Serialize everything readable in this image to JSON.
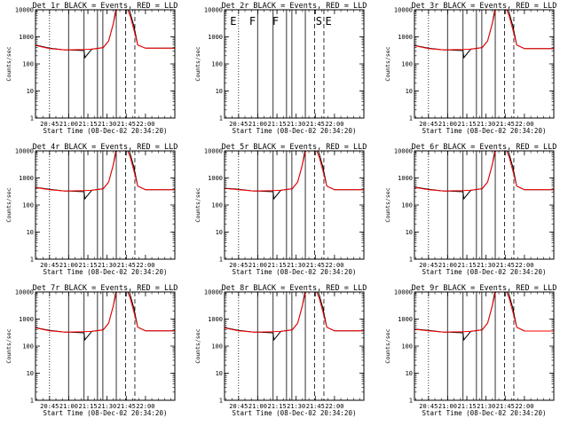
{
  "figure": {
    "time_range_hours": [
      20.567,
      22.383
    ],
    "x_tick_labels": [
      "20:45",
      "21:00",
      "21:15",
      "21:30",
      "21:45",
      "22:00"
    ],
    "x_tick_values_hours": [
      20.75,
      21.0,
      21.25,
      21.5,
      21.75,
      22.0
    ],
    "y_range": [
      1,
      10000
    ],
    "y_scale": "log",
    "y_tick_labels": [
      "1",
      "10",
      "100",
      "1000",
      "10000"
    ],
    "y_tick_values": [
      1,
      10,
      100,
      1000,
      10000
    ],
    "xlabel": "Start Time (08-Dec-02 20:34:20)",
    "ylabel": "Counts/sec",
    "colors": {
      "events": "#000000",
      "lld": "#ff0000"
    },
    "interval_markers_hours": [
      {
        "time": 20.75,
        "style": "dotted"
      },
      {
        "time": 20.998,
        "style": "solid"
      },
      {
        "time": 21.2,
        "style": "solid"
      },
      {
        "time": 21.375,
        "style": "solid"
      },
      {
        "time": 21.445,
        "style": "solid"
      },
      {
        "time": 21.62,
        "style": "solid"
      },
      {
        "time": 21.74,
        "style": "dashed"
      },
      {
        "time": 21.862,
        "style": "dashed"
      }
    ],
    "annotation_letters": [
      {
        "text": "E",
        "time": 20.64
      },
      {
        "text": "F",
        "time": 20.89
      },
      {
        "text": "F",
        "time": 21.19
      },
      {
        "text": "S",
        "time": 21.755
      },
      {
        "text": "E",
        "time": 21.88
      }
    ]
  },
  "chart_data": [
    {
      "type": "line",
      "title": "Det 1r BLACK = Events, RED = LLD",
      "has_data": true,
      "series": [
        {
          "name": "Events",
          "color": "#000000",
          "x": [
            20.567,
            20.75,
            20.95,
            21.0,
            21.01,
            21.2,
            21.21,
            21.3,
            21.45,
            21.52,
            21.58,
            21.62,
            21.64,
            21.7,
            21.75,
            21.8,
            21.85,
            21.9,
            22.0,
            22.2,
            22.383
          ],
          "y": [
            500,
            380,
            330,
            330,
            330,
            310,
            170,
            350,
            400,
            700,
            3000,
            12000,
            30000,
            30000,
            18000,
            8000,
            2500,
            500,
            380,
            380,
            380
          ]
        },
        {
          "name": "LLD",
          "color": "#ff0000",
          "x": [
            20.567,
            20.75,
            20.95,
            21.2,
            21.3,
            21.45,
            21.52,
            21.58,
            21.62,
            21.66,
            21.7,
            21.75,
            21.8,
            21.85,
            21.9,
            22.0,
            22.2,
            22.383
          ],
          "y": [
            480,
            370,
            330,
            340,
            350,
            400,
            700,
            3000,
            9000,
            14000,
            16000,
            13000,
            6000,
            1800,
            500,
            380,
            380,
            380
          ]
        }
      ]
    },
    {
      "type": "line",
      "title": "Det 2r BLACK = Events, RED = LLD",
      "has_data": false,
      "series": []
    },
    {
      "type": "line",
      "title": "Det 3r BLACK = Events, RED = LLD",
      "has_data": true,
      "series": [
        {
          "name": "Events",
          "color": "#000000",
          "x": [
            20.567,
            20.75,
            20.95,
            21.0,
            21.01,
            21.2,
            21.21,
            21.3,
            21.45,
            21.52,
            21.58,
            21.62,
            21.64,
            21.7,
            21.75,
            21.8,
            21.85,
            21.9,
            22.0,
            22.2,
            22.383
          ],
          "y": [
            480,
            380,
            330,
            330,
            330,
            310,
            170,
            350,
            400,
            700,
            3000,
            12000,
            30000,
            30000,
            18000,
            8000,
            2500,
            500,
            370,
            370,
            370
          ]
        },
        {
          "name": "LLD",
          "color": "#ff0000",
          "x": [
            20.567,
            20.75,
            20.95,
            21.2,
            21.3,
            21.45,
            21.52,
            21.58,
            21.62,
            21.66,
            21.7,
            21.75,
            21.8,
            21.85,
            21.9,
            22.0,
            22.2,
            22.383
          ],
          "y": [
            470,
            370,
            330,
            340,
            350,
            400,
            700,
            3000,
            9000,
            14000,
            16000,
            13000,
            6000,
            1800,
            500,
            370,
            370,
            370
          ]
        }
      ]
    },
    {
      "type": "line",
      "title": "Det 4r BLACK = Events, RED = LLD",
      "has_data": true,
      "series": [
        {
          "name": "Events",
          "color": "#000000",
          "x": [
            20.567,
            20.75,
            20.95,
            21.0,
            21.01,
            21.2,
            21.21,
            21.3,
            21.45,
            21.52,
            21.58,
            21.62,
            21.64,
            21.7,
            21.75,
            21.8,
            21.85,
            21.9,
            22.0,
            22.2,
            22.383
          ],
          "y": [
            450,
            380,
            330,
            330,
            330,
            310,
            170,
            350,
            400,
            700,
            3000,
            12000,
            30000,
            30000,
            18000,
            8000,
            2500,
            500,
            370,
            370,
            370
          ]
        },
        {
          "name": "LLD",
          "color": "#ff0000",
          "x": [
            20.567,
            20.75,
            20.95,
            21.2,
            21.3,
            21.45,
            21.52,
            21.58,
            21.62,
            21.66,
            21.7,
            21.75,
            21.8,
            21.85,
            21.9,
            22.0,
            22.2,
            22.383
          ],
          "y": [
            440,
            370,
            330,
            340,
            350,
            400,
            700,
            3000,
            9000,
            14000,
            16000,
            13000,
            6000,
            1800,
            500,
            370,
            370,
            370
          ]
        }
      ]
    },
    {
      "type": "line",
      "title": "Det 5r BLACK = Events, RED = LLD",
      "has_data": true,
      "series": [
        {
          "name": "Events",
          "color": "#000000",
          "x": [
            20.567,
            20.75,
            20.95,
            21.0,
            21.01,
            21.2,
            21.21,
            21.3,
            21.45,
            21.52,
            21.58,
            21.62,
            21.64,
            21.7,
            21.75,
            21.8,
            21.85,
            21.9,
            22.0,
            22.2,
            22.383
          ],
          "y": [
            420,
            380,
            330,
            330,
            330,
            310,
            170,
            350,
            400,
            700,
            3000,
            12000,
            30000,
            30000,
            18000,
            8000,
            2500,
            500,
            370,
            370,
            370
          ]
        },
        {
          "name": "LLD",
          "color": "#ff0000",
          "x": [
            20.567,
            20.75,
            20.95,
            21.2,
            21.3,
            21.45,
            21.52,
            21.58,
            21.62,
            21.66,
            21.7,
            21.75,
            21.8,
            21.85,
            21.9,
            22.0,
            22.2,
            22.383
          ],
          "y": [
            410,
            370,
            330,
            340,
            350,
            400,
            700,
            3000,
            9000,
            14000,
            16000,
            13000,
            6000,
            1800,
            500,
            370,
            370,
            370
          ]
        }
      ]
    },
    {
      "type": "line",
      "title": "Det 6r BLACK = Events, RED = LLD",
      "has_data": true,
      "series": [
        {
          "name": "Events",
          "color": "#000000",
          "x": [
            20.567,
            20.75,
            20.95,
            21.0,
            21.01,
            21.2,
            21.21,
            21.3,
            21.45,
            21.52,
            21.58,
            21.62,
            21.64,
            21.7,
            21.75,
            21.8,
            21.85,
            21.9,
            22.0,
            22.2,
            22.383
          ],
          "y": [
            460,
            380,
            330,
            330,
            330,
            310,
            170,
            350,
            400,
            700,
            3000,
            12000,
            30000,
            30000,
            18000,
            8000,
            2500,
            500,
            370,
            370,
            370
          ]
        },
        {
          "name": "LLD",
          "color": "#ff0000",
          "x": [
            20.567,
            20.75,
            20.95,
            21.2,
            21.3,
            21.45,
            21.52,
            21.58,
            21.62,
            21.66,
            21.7,
            21.75,
            21.8,
            21.85,
            21.9,
            22.0,
            22.2,
            22.383
          ],
          "y": [
            450,
            370,
            330,
            340,
            350,
            400,
            700,
            3000,
            9000,
            14000,
            16000,
            13000,
            6000,
            1800,
            500,
            370,
            370,
            370
          ]
        }
      ]
    },
    {
      "type": "line",
      "title": "Det 7r BLACK = Events, RED = LLD",
      "has_data": true,
      "series": [
        {
          "name": "Events",
          "color": "#000000",
          "x": [
            20.567,
            20.75,
            20.95,
            21.0,
            21.01,
            21.2,
            21.21,
            21.3,
            21.45,
            21.52,
            21.58,
            21.62,
            21.64,
            21.7,
            21.75,
            21.8,
            21.85,
            21.9,
            22.0,
            22.2,
            22.383
          ],
          "y": [
            480,
            380,
            330,
            330,
            330,
            310,
            170,
            350,
            400,
            700,
            3000,
            12000,
            30000,
            30000,
            18000,
            8000,
            2500,
            500,
            370,
            370,
            370
          ]
        },
        {
          "name": "LLD",
          "color": "#ff0000",
          "x": [
            20.567,
            20.75,
            20.95,
            21.2,
            21.3,
            21.45,
            21.52,
            21.58,
            21.62,
            21.66,
            21.7,
            21.75,
            21.8,
            21.85,
            21.9,
            22.0,
            22.2,
            22.383
          ],
          "y": [
            470,
            370,
            330,
            340,
            350,
            400,
            700,
            3000,
            9000,
            14000,
            16000,
            13000,
            6000,
            1800,
            500,
            370,
            370,
            370
          ]
        }
      ]
    },
    {
      "type": "line",
      "title": "Det 8r BLACK = Events, RED = LLD",
      "has_data": true,
      "series": [
        {
          "name": "Events",
          "color": "#000000",
          "x": [
            20.567,
            20.75,
            20.95,
            21.0,
            21.01,
            21.2,
            21.21,
            21.3,
            21.45,
            21.52,
            21.58,
            21.62,
            21.64,
            21.7,
            21.75,
            21.8,
            21.85,
            21.9,
            22.0,
            22.2,
            22.383
          ],
          "y": [
            480,
            380,
            330,
            330,
            330,
            310,
            170,
            350,
            400,
            700,
            3000,
            12000,
            30000,
            30000,
            18000,
            8000,
            2500,
            500,
            370,
            370,
            370
          ]
        },
        {
          "name": "LLD",
          "color": "#ff0000",
          "x": [
            20.567,
            20.75,
            20.95,
            21.2,
            21.3,
            21.45,
            21.52,
            21.58,
            21.62,
            21.66,
            21.7,
            21.75,
            21.8,
            21.85,
            21.9,
            22.0,
            22.2,
            22.383
          ],
          "y": [
            470,
            370,
            330,
            340,
            350,
            400,
            700,
            3000,
            9000,
            14000,
            16000,
            13000,
            6000,
            1800,
            500,
            370,
            370,
            370
          ]
        }
      ]
    },
    {
      "type": "line",
      "title": "Det 9r BLACK = Events, RED = LLD",
      "has_data": true,
      "series": [
        {
          "name": "Events",
          "color": "#000000",
          "x": [
            20.567,
            20.75,
            20.95,
            21.0,
            21.01,
            21.2,
            21.21,
            21.3,
            21.45,
            21.52,
            21.58,
            21.62,
            21.64,
            21.7,
            21.75,
            21.8,
            21.85,
            21.9,
            22.0,
            22.2,
            22.383
          ],
          "y": [
            430,
            380,
            330,
            330,
            330,
            310,
            170,
            350,
            400,
            700,
            3000,
            12000,
            30000,
            30000,
            18000,
            8000,
            2500,
            500,
            360,
            360,
            360
          ]
        },
        {
          "name": "LLD",
          "color": "#ff0000",
          "x": [
            20.567,
            20.75,
            20.95,
            21.2,
            21.3,
            21.45,
            21.52,
            21.58,
            21.62,
            21.66,
            21.7,
            21.75,
            21.8,
            21.85,
            21.9,
            22.0,
            22.2,
            22.383
          ],
          "y": [
            420,
            370,
            330,
            340,
            350,
            400,
            700,
            3000,
            9000,
            14000,
            16000,
            13000,
            6000,
            1800,
            500,
            360,
            360,
            360
          ]
        }
      ]
    }
  ]
}
